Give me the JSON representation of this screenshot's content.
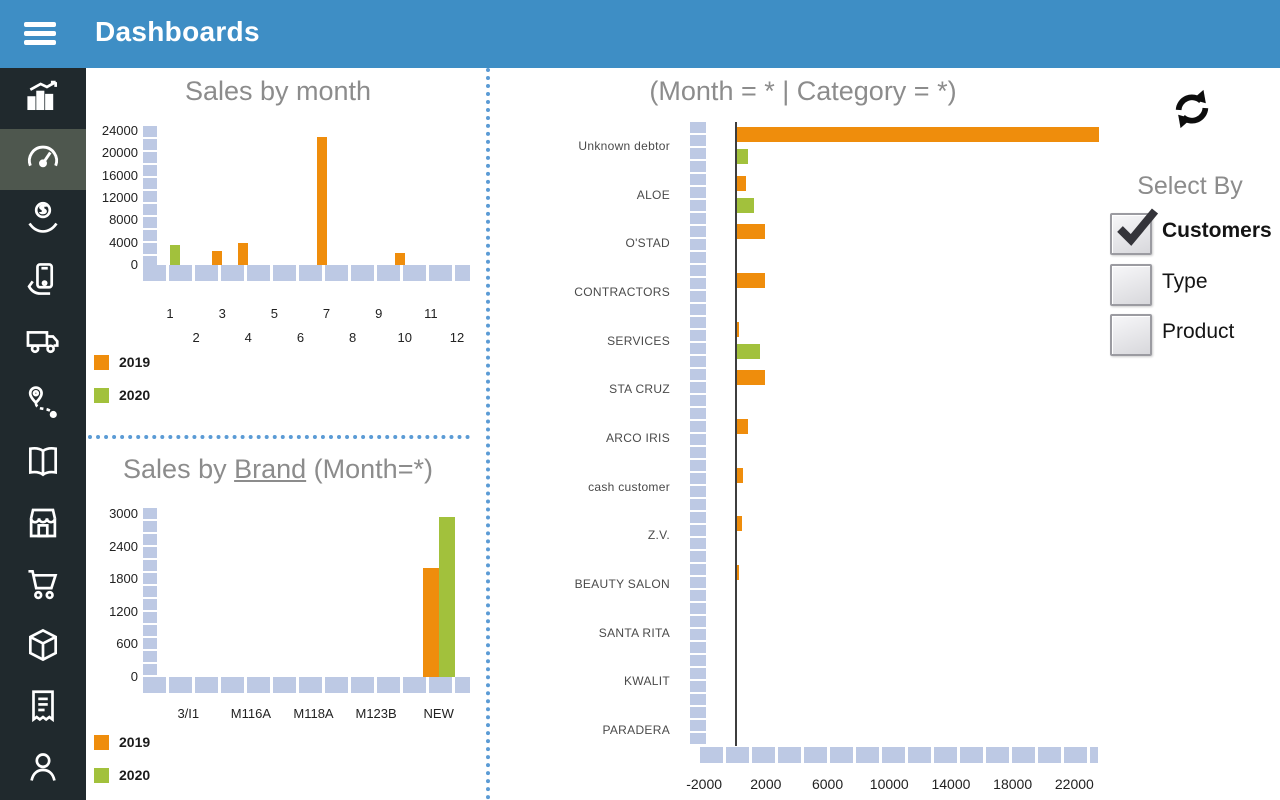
{
  "header": {
    "title": "Dashboards"
  },
  "sidebar": {
    "items": [
      {
        "id": "statistics",
        "icon": "stats",
        "active": false
      },
      {
        "id": "dashboard",
        "icon": "gauge",
        "active": true
      },
      {
        "id": "sales",
        "icon": "money-hand",
        "active": false
      },
      {
        "id": "mobile-payments",
        "icon": "phone-hand",
        "active": false
      },
      {
        "id": "deliveries",
        "icon": "truck",
        "active": false
      },
      {
        "id": "routes",
        "icon": "route-pin",
        "active": false
      },
      {
        "id": "catalog",
        "icon": "book",
        "active": false
      },
      {
        "id": "stores",
        "icon": "store",
        "active": false
      },
      {
        "id": "cart",
        "icon": "cart",
        "active": false
      },
      {
        "id": "inventory",
        "icon": "box",
        "active": false
      },
      {
        "id": "invoices",
        "icon": "receipt",
        "active": false
      },
      {
        "id": "customers",
        "icon": "person",
        "active": false
      }
    ]
  },
  "colors": {
    "header": "#3e8ec5",
    "divider": "#5b9bd5",
    "axis": "#bdc9e4",
    "orange": "#ef8d0c",
    "green": "#a2c13c"
  },
  "charts": {
    "sales_by_month": {
      "chart_data": {
        "type": "bar",
        "title": "Sales by month",
        "categories": [
          "1",
          "2",
          "3",
          "4",
          "5",
          "6",
          "7",
          "8",
          "9",
          "10",
          "11",
          "12"
        ],
        "series": [
          {
            "name": "2019",
            "color": "#ef8d0c",
            "values": [
              0,
              0,
              2500,
              4000,
              0,
              0,
              23000,
              0,
              0,
              2200,
              0,
              0
            ]
          },
          {
            "name": "2020",
            "color": "#a2c13c",
            "values": [
              3500,
              0,
              0,
              0,
              0,
              0,
              0,
              0,
              0,
              0,
              0,
              0
            ]
          }
        ],
        "ylim": [
          0,
          24000
        ],
        "yticks": [
          0,
          4000,
          8000,
          12000,
          16000,
          20000,
          24000
        ],
        "legend": [
          "2019",
          "2020"
        ],
        "legend_position": "bottom-left"
      }
    },
    "sales_by_brand": {
      "chart_data": {
        "type": "bar",
        "title_parts": {
          "prefix": "Sales by ",
          "link": "Brand",
          "suffix": " (Month=*)"
        },
        "categories": [
          "3/I1",
          "M116A",
          "M118A",
          "M123B",
          "NEW"
        ],
        "series": [
          {
            "name": "2019",
            "color": "#ef8d0c",
            "values": [
              0,
              0,
              0,
              0,
              2000
            ]
          },
          {
            "name": "2020",
            "color": "#a2c13c",
            "values": [
              0,
              0,
              0,
              0,
              2950
            ]
          }
        ],
        "ylim": [
          0,
          3000
        ],
        "yticks": [
          0,
          600,
          1200,
          1800,
          2400,
          3000
        ],
        "legend": [
          "2019",
          "2020"
        ],
        "legend_position": "bottom-left"
      }
    },
    "customers_by_category": {
      "chart_data": {
        "type": "bar-horizontal",
        "title": "(Month = * | Category = *)",
        "categories": [
          "Unknown debtor",
          "ALOE",
          "O'STAD",
          "CONTRACTORS",
          "SERVICES",
          "STA CRUZ",
          "ARCO IRIS",
          "cash customer",
          "Z.V.",
          "BEAUTY SALON",
          "SANTA RITA",
          "KWALIT",
          "PARADERA"
        ],
        "series": [
          {
            "name": "2019",
            "color": "#ef8d0c",
            "values": [
              23500,
              600,
              1800,
              1800,
              150,
              1800,
              700,
              400,
              300,
              100,
              0,
              0,
              0
            ]
          },
          {
            "name": "2020",
            "color": "#a2c13c",
            "values": [
              700,
              1100,
              0,
              0,
              1500,
              0,
              0,
              0,
              0,
              0,
              0,
              0,
              0
            ]
          }
        ],
        "xlim": [
          -2000,
          23000
        ],
        "xticks": [
          -2000,
          2000,
          6000,
          10000,
          14000,
          18000,
          22000
        ],
        "grid": "off",
        "legend": []
      }
    }
  },
  "select_by": {
    "title": "Select By",
    "options": [
      {
        "label": "Customers",
        "checked": true
      },
      {
        "label": "Type",
        "checked": false
      },
      {
        "label": "Product",
        "checked": false
      }
    ]
  }
}
